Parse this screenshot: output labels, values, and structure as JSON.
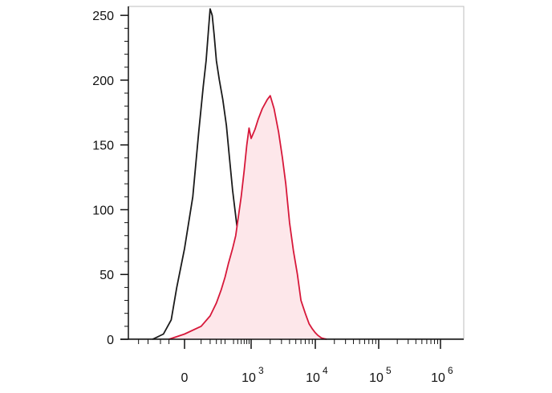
{
  "chart_data": {
    "type": "area",
    "title": "",
    "xlabel": "",
    "ylabel": "",
    "x_scale": "biexponential",
    "xlim": [
      -300,
      1000000
    ],
    "ylim": [
      0,
      260
    ],
    "y_ticks": [
      {
        "value": 0,
        "label": "0"
      },
      {
        "value": 50,
        "label": "50"
      },
      {
        "value": 100,
        "label": "100"
      },
      {
        "value": 150,
        "label": "150"
      },
      {
        "value": 200,
        "label": "200"
      },
      {
        "value": 250,
        "label": "250"
      }
    ],
    "x_ticks": [
      {
        "value": 0,
        "base": "0",
        "exp": ""
      },
      {
        "value": 1000,
        "base": "10",
        "exp": "3"
      },
      {
        "value": 10000,
        "base": "10",
        "exp": "4"
      },
      {
        "value": 100000,
        "base": "10",
        "exp": "5"
      },
      {
        "value": 1000000,
        "base": "10",
        "exp": "6"
      }
    ],
    "grid": false,
    "legend": "none",
    "series": [
      {
        "color": "#1a1a1a",
        "fill": "none",
        "points": [
          [
            -130,
            0
          ],
          [
            -80,
            4
          ],
          [
            -40,
            15
          ],
          [
            -20,
            40
          ],
          [
            0,
            70
          ],
          [
            20,
            110
          ],
          [
            40,
            160
          ],
          [
            60,
            195
          ],
          [
            75,
            215
          ],
          [
            90,
            240
          ],
          [
            100,
            255
          ],
          [
            115,
            250
          ],
          [
            130,
            235
          ],
          [
            150,
            215
          ],
          [
            180,
            200
          ],
          [
            220,
            185
          ],
          [
            270,
            165
          ],
          [
            320,
            140
          ],
          [
            380,
            115
          ],
          [
            450,
            95
          ],
          [
            530,
            75
          ],
          [
            620,
            50
          ],
          [
            720,
            30
          ],
          [
            830,
            15
          ],
          [
            950,
            8
          ],
          [
            1100,
            4
          ],
          [
            1400,
            2
          ],
          [
            2000,
            1
          ],
          [
            3000,
            0
          ]
        ]
      },
      {
        "color": "#d7183a",
        "fill": "#fde7ea",
        "points": [
          [
            -50,
            0
          ],
          [
            0,
            4
          ],
          [
            50,
            10
          ],
          [
            100,
            18
          ],
          [
            150,
            28
          ],
          [
            200,
            38
          ],
          [
            250,
            48
          ],
          [
            300,
            58
          ],
          [
            380,
            70
          ],
          [
            450,
            80
          ],
          [
            520,
            95
          ],
          [
            600,
            110
          ],
          [
            700,
            130
          ],
          [
            800,
            150
          ],
          [
            900,
            163
          ],
          [
            1000,
            155
          ],
          [
            1150,
            162
          ],
          [
            1300,
            170
          ],
          [
            1500,
            178
          ],
          [
            1800,
            185
          ],
          [
            2000,
            188
          ],
          [
            2300,
            178
          ],
          [
            2700,
            160
          ],
          [
            3100,
            140
          ],
          [
            3500,
            120
          ],
          [
            4000,
            90
          ],
          [
            4600,
            68
          ],
          [
            5300,
            50
          ],
          [
            6000,
            30
          ],
          [
            7000,
            20
          ],
          [
            8000,
            12
          ],
          [
            9000,
            8
          ],
          [
            10000,
            5
          ],
          [
            11000,
            3
          ],
          [
            12500,
            1
          ],
          [
            15000,
            0
          ]
        ]
      }
    ]
  }
}
